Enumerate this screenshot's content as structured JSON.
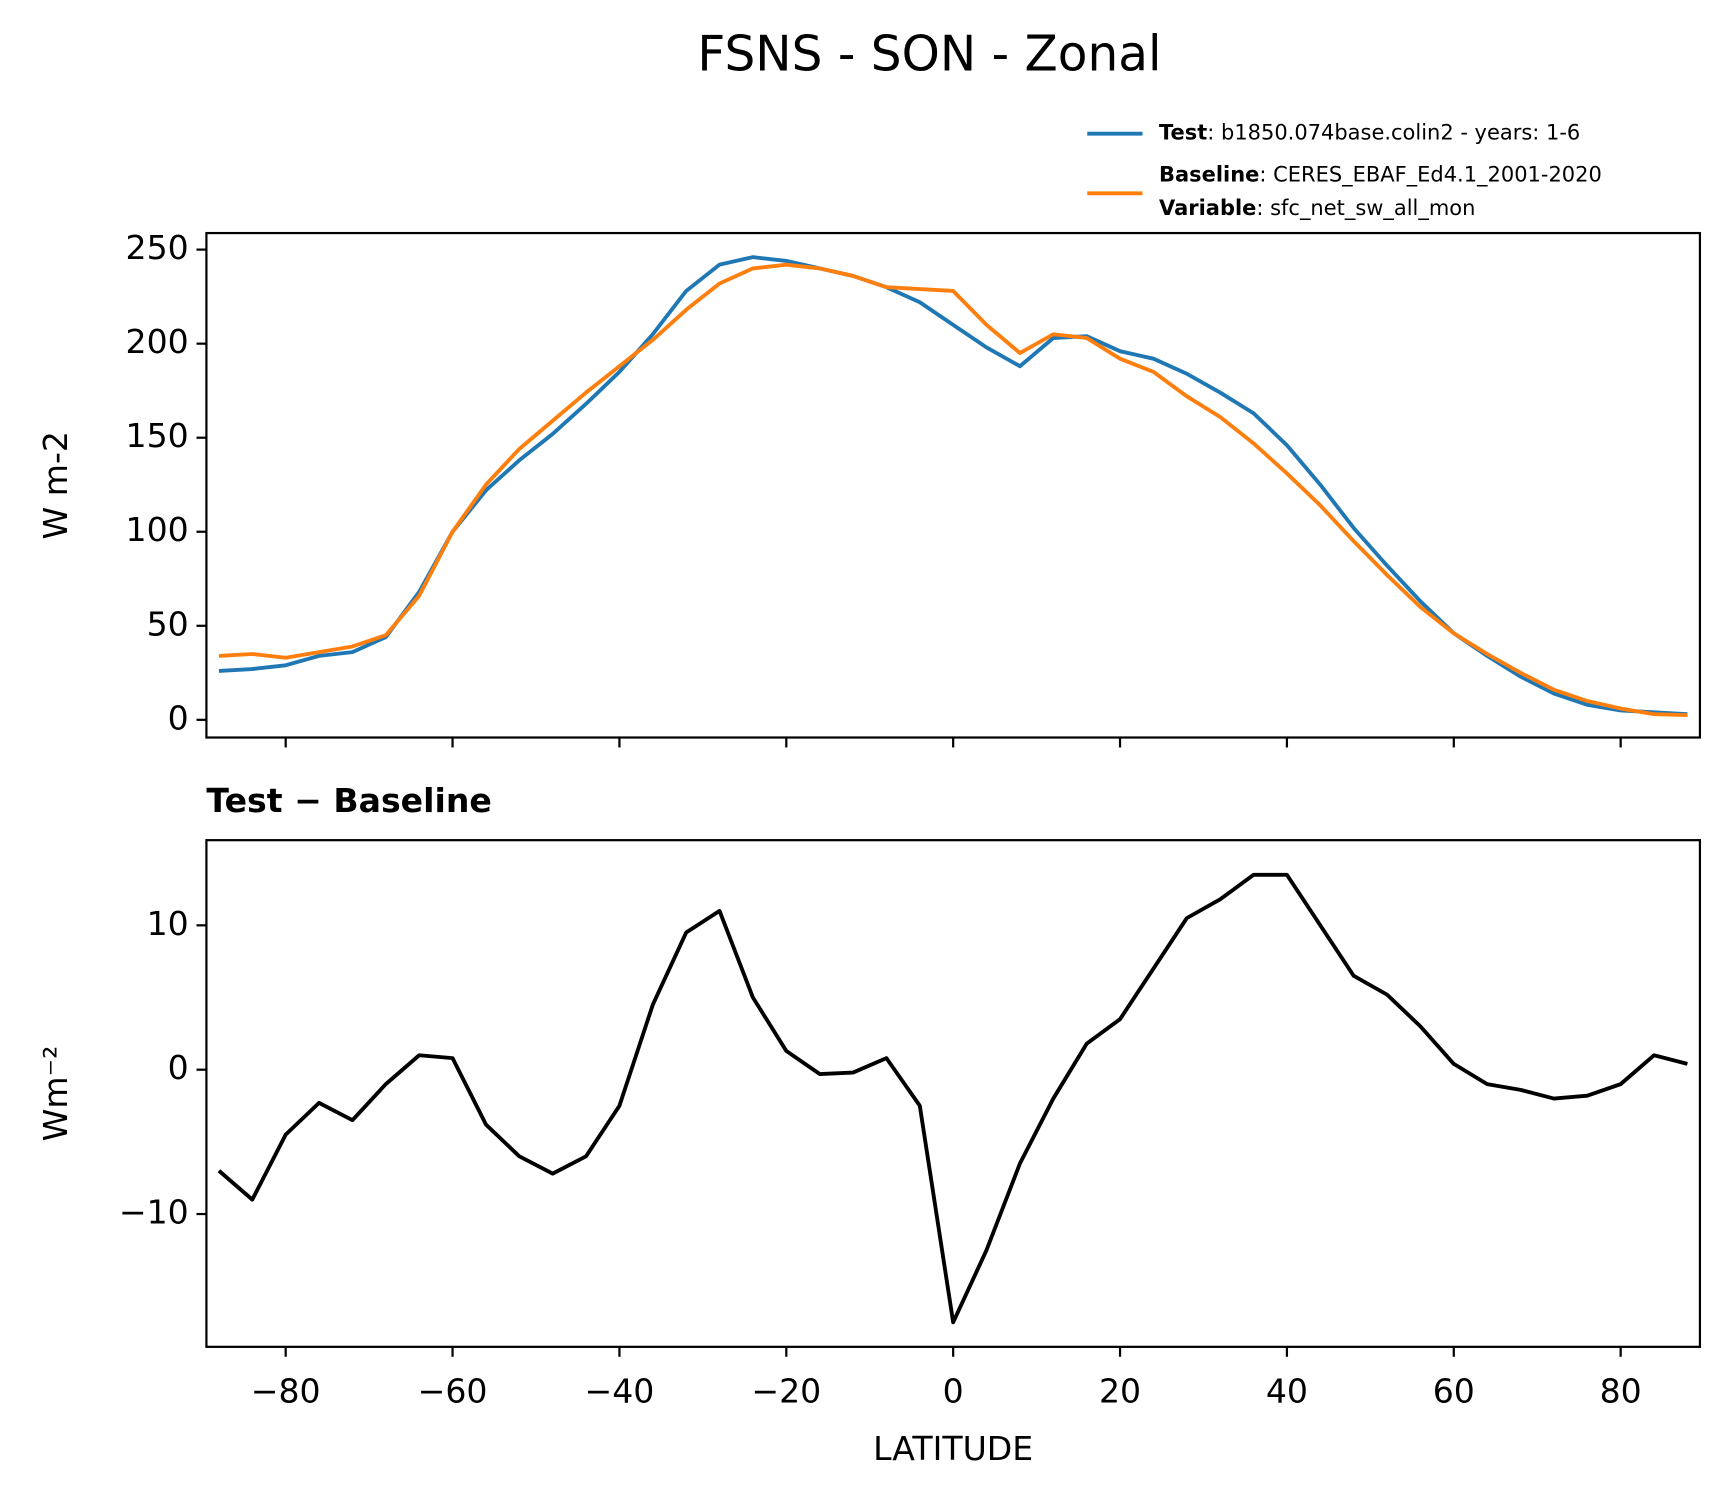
{
  "chart_data": [
    {
      "type": "line",
      "title": "FSNS - SON - Zonal",
      "ylabel": "W m-2",
      "x": [
        -88,
        -84,
        -80,
        -76,
        -72,
        -68,
        -64,
        -60,
        -56,
        -52,
        -48,
        -44,
        -40,
        -36,
        -32,
        -28,
        -24,
        -20,
        -16,
        -12,
        -8,
        -4,
        0,
        4,
        8,
        12,
        16,
        20,
        24,
        28,
        32,
        36,
        40,
        44,
        48,
        52,
        56,
        60,
        64,
        68,
        72,
        76,
        80,
        84,
        88
      ],
      "series": [
        {
          "name": "Test",
          "description": ": b1850.074base.colin2 - years: 1-6",
          "color": "#1f77b4",
          "values": [
            26,
            27,
            29,
            34,
            36,
            44,
            68,
            100,
            122,
            138,
            152,
            168,
            185,
            205,
            228,
            242,
            246,
            244,
            240,
            236,
            230,
            222,
            210,
            198,
            188,
            203,
            204,
            196,
            192,
            184,
            174,
            163,
            146,
            125,
            102,
            82,
            63,
            46,
            34,
            23,
            14,
            8,
            5,
            4,
            3
          ]
        },
        {
          "name": "Baseline",
          "description": ": CERES_EBAF_Ed4.1_2001-2020",
          "color": "#ff7f0e",
          "values": [
            34,
            35,
            33,
            36,
            39,
            45,
            66,
            100,
            125,
            144,
            159,
            174,
            188,
            202,
            218,
            232,
            240,
            242,
            240,
            236,
            230,
            229,
            228,
            210,
            195,
            205,
            203,
            192,
            185,
            172,
            161,
            147,
            131,
            114,
            95,
            77,
            60,
            46,
            35,
            25,
            16,
            10,
            6,
            3,
            2.5
          ]
        }
      ],
      "variable": {
        "name": "Variable",
        "description": ": sfc_net_sw_all_mon"
      },
      "xlim": [
        -89.5,
        89.5
      ],
      "xticks": [
        -80,
        -60,
        -40,
        -20,
        0,
        20,
        40,
        60,
        80
      ],
      "ylim": [
        -9.4,
        258.8
      ],
      "yticks": [
        0,
        50,
        100,
        150,
        200,
        250
      ]
    },
    {
      "type": "line",
      "title": "Test − Baseline",
      "ylabel": "Wm⁻²",
      "xlabel": "LATITUDE",
      "x": [
        -88,
        -84,
        -80,
        -76,
        -72,
        -68,
        -64,
        -60,
        -56,
        -52,
        -48,
        -44,
        -40,
        -36,
        -32,
        -28,
        -24,
        -20,
        -16,
        -12,
        -8,
        -4,
        0,
        4,
        8,
        12,
        16,
        20,
        24,
        28,
        32,
        36,
        40,
        44,
        48,
        52,
        56,
        60,
        64,
        68,
        72,
        76,
        80,
        84,
        88
      ],
      "series": [
        {
          "name": "Test − Baseline",
          "color": "#000000",
          "values": [
            -7,
            -9,
            -4.5,
            -2.3,
            -3.5,
            -1,
            1,
            0.8,
            -3.8,
            -6,
            -7.2,
            -6,
            -2.5,
            4.5,
            9.5,
            11,
            5,
            1.3,
            -0.3,
            -0.2,
            0.8,
            -2.5,
            -17.5,
            -12.5,
            -6.5,
            -2,
            1.8,
            3.5,
            7,
            10.5,
            11.8,
            13.5,
            13.5,
            10,
            6.5,
            5.2,
            3,
            0.4,
            -1,
            -1.4,
            -2,
            -1.8,
            -1,
            1,
            0.4
          ]
        }
      ],
      "xlim": [
        -89.5,
        89.5
      ],
      "xticks": [
        {
          "value": -80,
          "label": "−80"
        },
        {
          "value": -60,
          "label": "−60"
        },
        {
          "value": -40,
          "label": "−40"
        },
        {
          "value": -20,
          "label": "−20"
        },
        0,
        20,
        40,
        60,
        80
      ],
      "ylim": [
        -19.2,
        15.9
      ],
      "yticks": [
        {
          "value": -10,
          "label": "−10"
        },
        0,
        10
      ]
    }
  ]
}
